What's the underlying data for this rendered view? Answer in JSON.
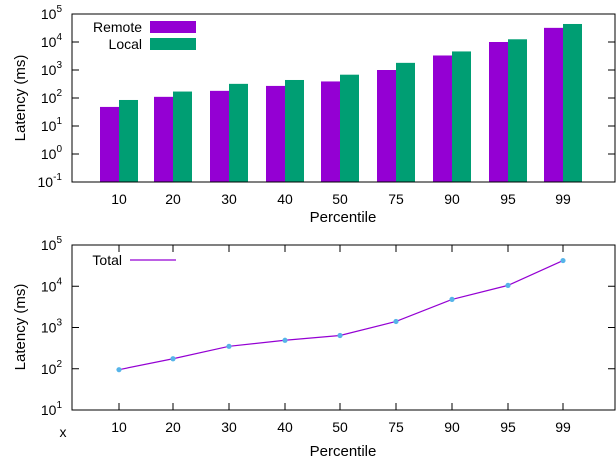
{
  "chart_data": [
    {
      "type": "bar",
      "xlabel": "Percentile",
      "ylabel": "Latency (ms)",
      "yscale": "log",
      "ylim": [
        0.1,
        100000
      ],
      "yticks": [
        {
          "base": "10",
          "exp": "-1"
        },
        {
          "base": "10",
          "exp": "0"
        },
        {
          "base": "10",
          "exp": "1"
        },
        {
          "base": "10",
          "exp": "2"
        },
        {
          "base": "10",
          "exp": "3"
        },
        {
          "base": "10",
          "exp": "4"
        },
        {
          "base": "10",
          "exp": "5"
        }
      ],
      "categories": [
        "10",
        "20",
        "30",
        "40",
        "50",
        "75",
        "90",
        "95",
        "99"
      ],
      "legend_position": "top-left",
      "series": [
        {
          "name": "Remote",
          "color": "#9400d3",
          "values": [
            48,
            110,
            180,
            270,
            390,
            1000,
            3300,
            10000,
            32000
          ]
        },
        {
          "name": "Local",
          "color": "#009e73",
          "values": [
            85,
            170,
            320,
            440,
            680,
            1800,
            4600,
            12500,
            44000
          ]
        }
      ]
    },
    {
      "type": "line",
      "xlabel": "Percentile",
      "ylabel": "Latency (ms)",
      "yscale": "log",
      "ylim": [
        10,
        100000
      ],
      "yticks": [
        {
          "base": "10",
          "exp": "1"
        },
        {
          "base": "10",
          "exp": "2"
        },
        {
          "base": "10",
          "exp": "3"
        },
        {
          "base": "10",
          "exp": "4"
        },
        {
          "base": "10",
          "exp": "5"
        }
      ],
      "x_prefix_label": "x",
      "categories": [
        "10",
        "20",
        "30",
        "40",
        "50",
        "75",
        "90",
        "95",
        "99"
      ],
      "legend_position": "top-left",
      "series": [
        {
          "name": "Total",
          "color": "#9400d3",
          "marker_color": "#56b4e9",
          "values": [
            95,
            175,
            350,
            490,
            640,
            1400,
            4800,
            10500,
            42000
          ]
        }
      ]
    }
  ]
}
